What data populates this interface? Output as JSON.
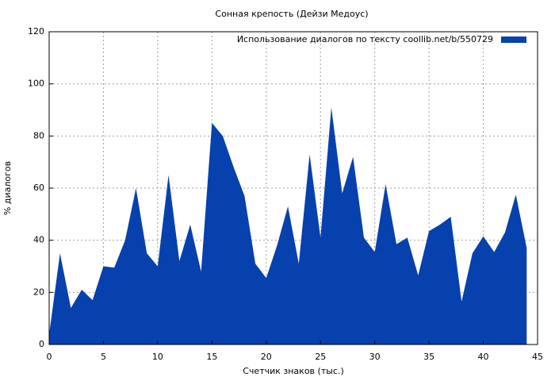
{
  "chart_data": {
    "type": "area",
    "title": "Сонная крепость (Дейзи Медоус)",
    "xlabel": "Счетчик знаков (тыс.)",
    "ylabel": "% диалогов",
    "x": [
      0,
      1,
      2,
      3,
      4,
      5,
      6,
      7,
      8,
      9,
      10,
      11,
      12,
      13,
      14,
      15,
      16,
      17,
      18,
      19,
      20,
      21,
      22,
      23,
      24,
      25,
      26,
      27,
      28,
      29,
      30,
      31,
      32,
      33,
      34,
      35,
      36,
      37,
      38,
      39,
      40,
      41,
      42,
      43,
      44
    ],
    "series": [
      {
        "name": "Использование диалогов по тексту  coollib.net/b/550729",
        "color": "#0641ad",
        "values": [
          4,
          35,
          14,
          21,
          17,
          30,
          29.5,
          40,
          60,
          35,
          30,
          65,
          32,
          46,
          28,
          85,
          80,
          68,
          57,
          31,
          25.5,
          38,
          53,
          31,
          73,
          41,
          91,
          58,
          72,
          41,
          35.5,
          61.5,
          38.5,
          41,
          26.5,
          43.5,
          46,
          49,
          16.5,
          35,
          41.5,
          35.5,
          43,
          57.5,
          37
        ]
      }
    ],
    "xlim": [
      0,
      45
    ],
    "ylim": [
      0,
      120
    ],
    "xticks": [
      0,
      5,
      10,
      15,
      20,
      25,
      30,
      35,
      40,
      45
    ],
    "yticks": [
      0,
      20,
      40,
      60,
      80,
      100,
      120
    ],
    "grid": true,
    "legend": "top-right"
  }
}
